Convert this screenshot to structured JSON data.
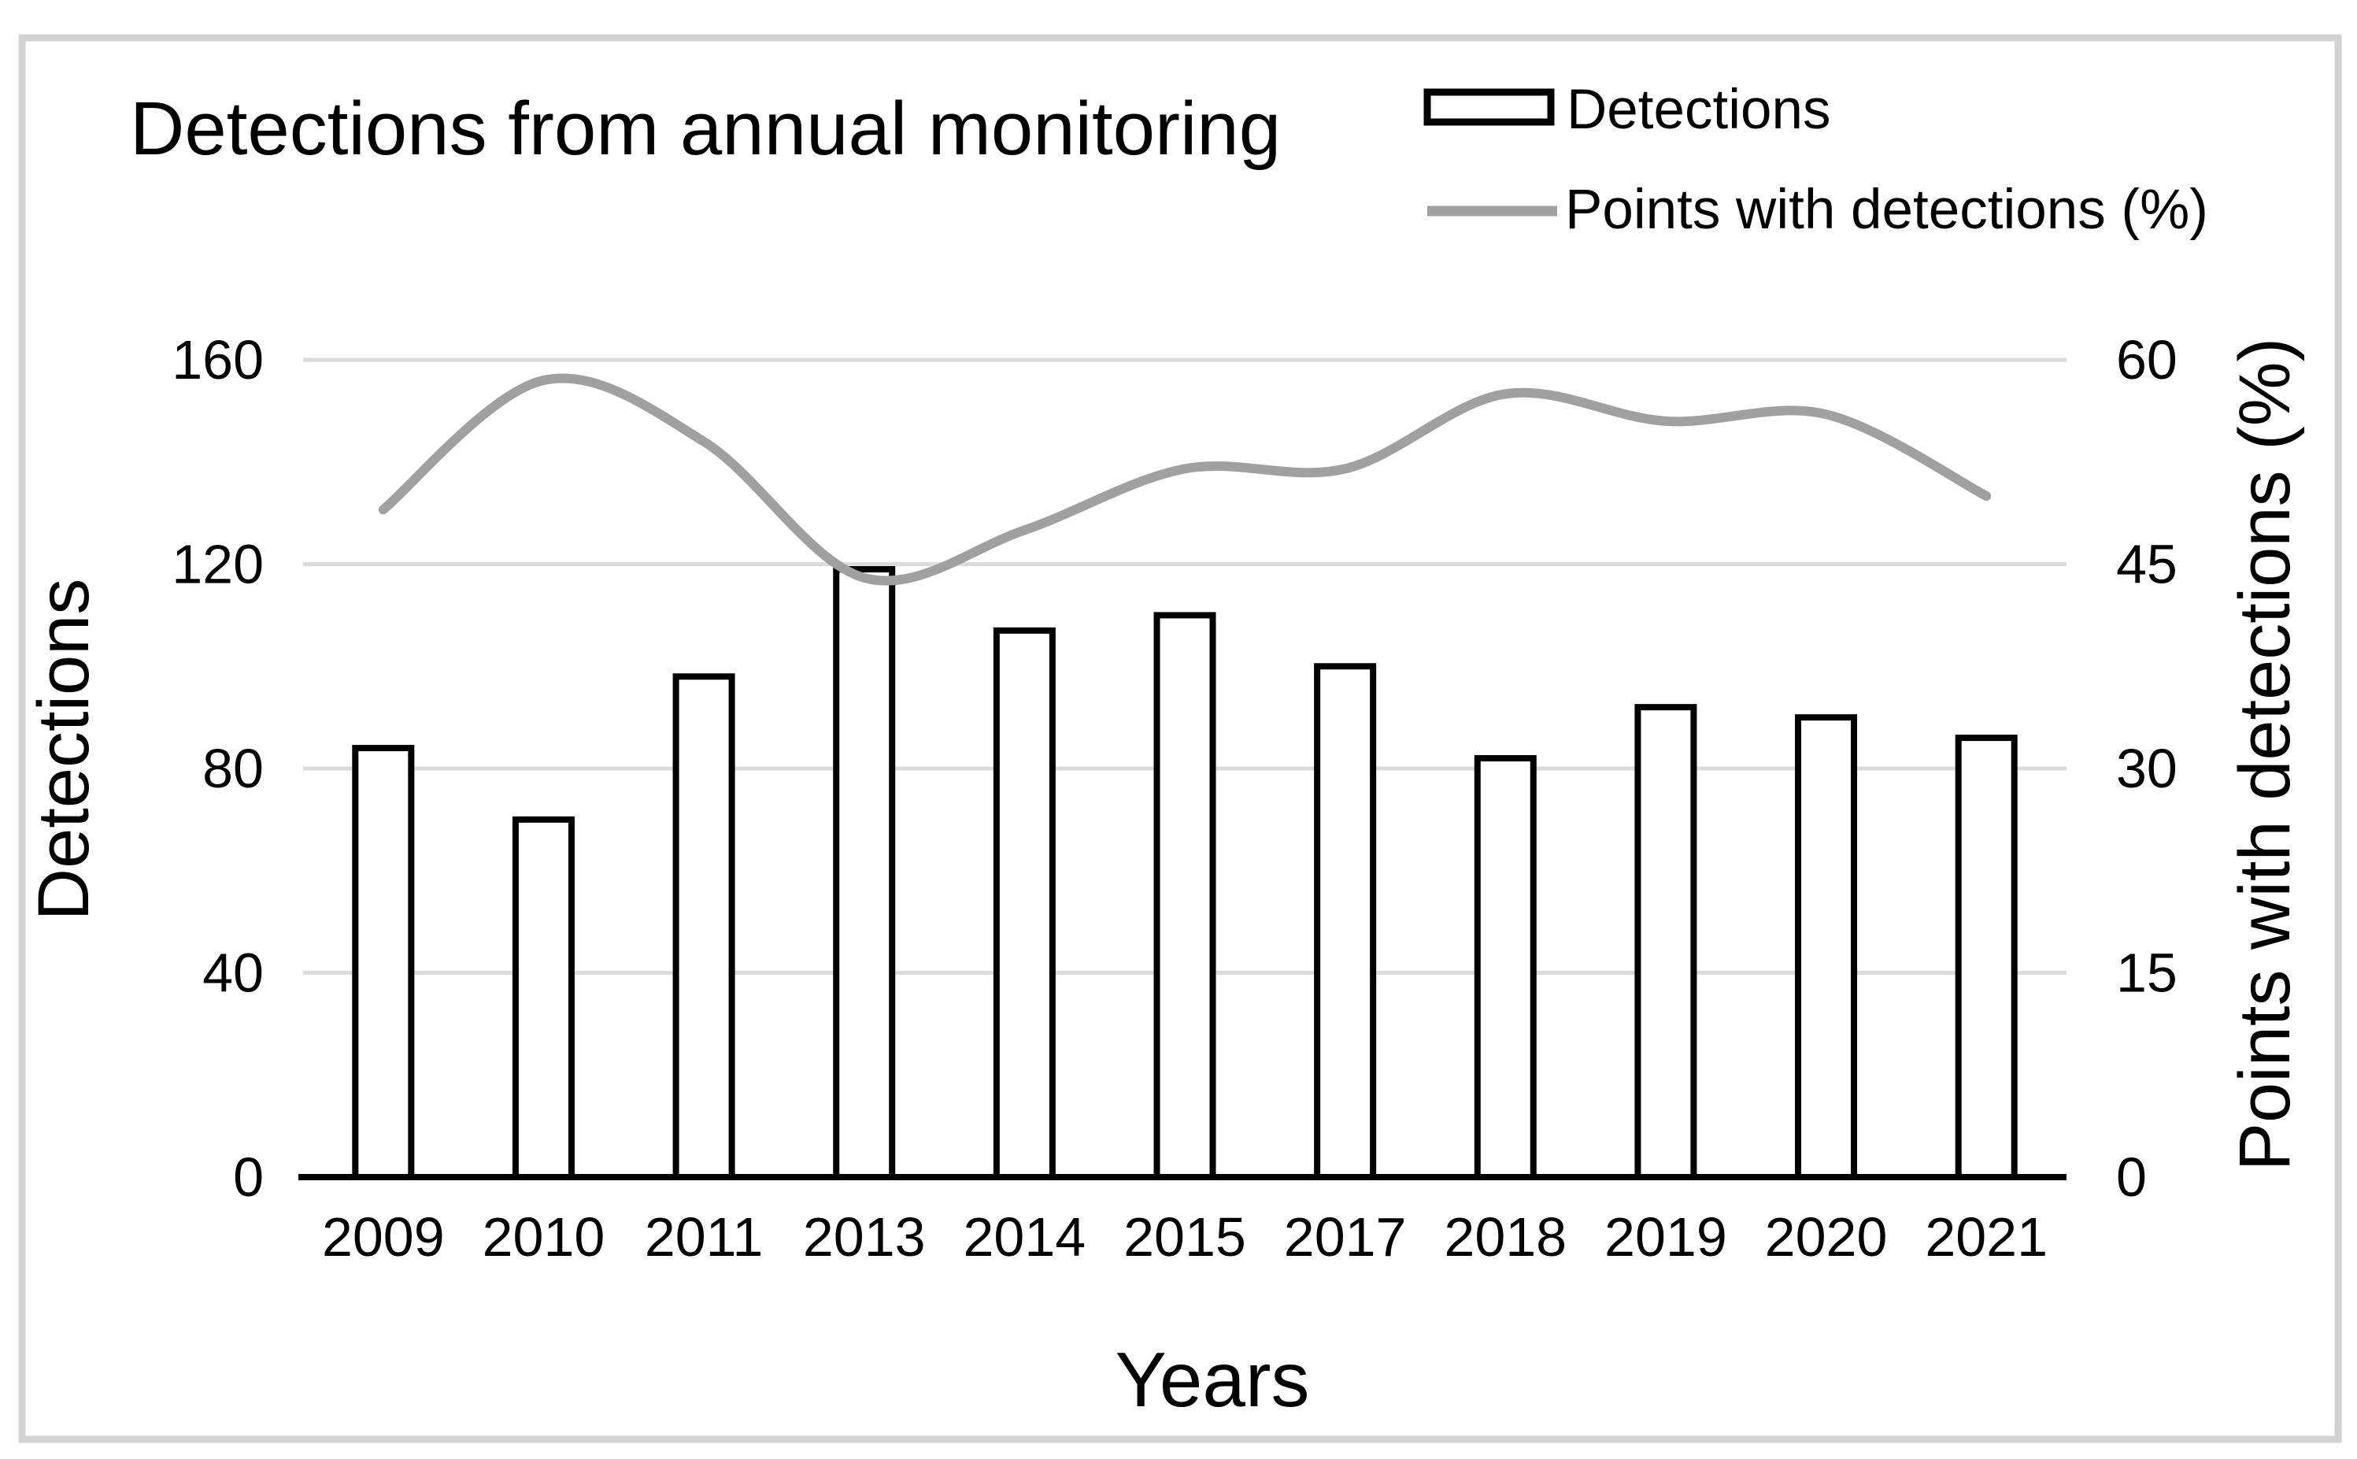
{
  "figure": {
    "title": "Detections from annual monitoring"
  },
  "legend": {
    "bar_label": "Detections",
    "line_label": "Points with detections (%)"
  },
  "axes": {
    "x": {
      "title": "Years",
      "tick_labels": [
        "2009",
        "2010",
        "2011",
        "2013",
        "2014",
        "2015",
        "2017",
        "2018",
        "2019",
        "2020",
        "2021"
      ]
    },
    "y_left": {
      "title": "Detections",
      "tick_labels": [
        0,
        40,
        80,
        120,
        160
      ],
      "min": 0,
      "max": 160
    },
    "y_right": {
      "title": "Points with detections (%)",
      "tick_labels": [
        0,
        15,
        30,
        45,
        60
      ],
      "min": 0,
      "max": 60
    }
  },
  "chart_data": {
    "type": "bar",
    "subtype": "bar-plus-smooth-line-dual-axis",
    "title": "Detections from annual monitoring",
    "xlabel": "Years",
    "ylabel_left": "Detections",
    "ylabel_right": "Points with detections (%)",
    "ylim_left": [
      0,
      160
    ],
    "ylim_right": [
      0,
      60
    ],
    "grid": true,
    "legend_position": "top-right",
    "categories": [
      "2009",
      "2010",
      "2011",
      "2013",
      "2014",
      "2015",
      "2017",
      "2018",
      "2019",
      "2020",
      "2021"
    ],
    "series": [
      {
        "name": "Detections",
        "type": "bar",
        "axis": "left",
        "values": [
          84,
          70,
          98,
          119,
          107,
          110,
          100,
          82,
          92,
          90,
          86
        ]
      },
      {
        "name": "Points with detections (%)",
        "type": "line",
        "smooth": true,
        "axis": "right",
        "values": [
          49,
          58.5,
          54,
          44,
          47.5,
          52,
          52,
          57.5,
          55.5,
          56,
          50
        ]
      }
    ]
  },
  "colors": {
    "background": "#ffffff",
    "bar_fill": "#ffffff",
    "bar_stroke": "#000000",
    "line": "#a0a0a0",
    "gridline": "#dcdcdc",
    "axis_line": "#000000",
    "text": "#000000",
    "frame_border": "#d2d2d2"
  }
}
